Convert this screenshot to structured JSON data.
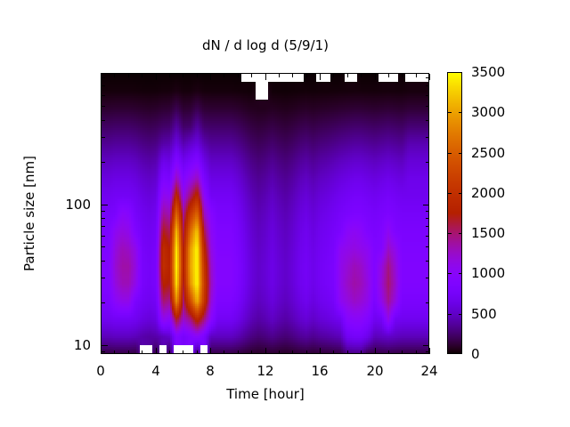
{
  "title": "dN / d log d (5/9/1)",
  "x_axis": {
    "label": "Time [hour]",
    "min": 0,
    "max": 24,
    "major_ticks": [
      0,
      4,
      8,
      12,
      16,
      20,
      24
    ],
    "minor_tick_step_hours": 1
  },
  "y_axis": {
    "label": "Particle size [nm]",
    "scale": "log",
    "min_nm": 8.6,
    "max_nm": 860,
    "major_ticks": [
      10,
      100
    ],
    "minor_ticks": [
      9,
      20,
      30,
      40,
      50,
      60,
      70,
      80,
      90,
      200,
      300,
      400,
      500,
      600,
      700,
      800
    ]
  },
  "colorbar": {
    "min": 0,
    "max": 3500,
    "tick_values": [
      0,
      500,
      1000,
      1500,
      2000,
      2500,
      3000,
      3500
    ],
    "palette_name": "gnuplot pm3d black-violet-magenta-orange-yellow",
    "palette_stops_hex": [
      "#000000",
      "#6001C7",
      "#8806F9",
      "#A7146F",
      "#C13000",
      "#D75D00",
      "#ECA100",
      "#FFFF00"
    ],
    "missing_data_color": "#FFFFFF"
  },
  "chart_data": {
    "type": "heatmap",
    "title": "dN / d log d (5/9/1)",
    "xlabel": "Time [hour]",
    "ylabel": "Particle size [nm]",
    "x_hours": [
      0,
      0.5,
      1,
      1.5,
      2,
      2.5,
      3,
      3.5,
      4,
      4.5,
      5,
      5.5,
      6,
      6.5,
      7,
      7.5,
      8,
      8.5,
      9,
      9.5,
      10,
      10.5,
      11,
      11.5,
      12,
      12.5,
      13,
      13.5,
      14,
      14.5,
      15,
      15.5,
      16,
      16.5,
      17,
      17.5,
      18,
      18.5,
      19,
      19.5,
      20,
      20.5,
      21,
      21.5,
      22,
      22.5,
      23,
      23.5,
      24
    ],
    "y_sizes_nm": [
      8.6,
      11.5,
      15.4,
      20.7,
      27.7,
      37.1,
      49.7,
      66.6,
      89.3,
      119.6,
      160,
      214,
      287,
      385,
      515,
      690,
      860
    ],
    "values_rows_bottom_to_top": [
      [
        142,
        142,
        150,
        150,
        150,
        142,
        null,
        null,
        128,
        null,
        158,
        null,
        null,
        null,
        165,
        null,
        150,
        150,
        150,
        150,
        135,
        112,
        93,
        82,
        90,
        102,
        90,
        82,
        93,
        108,
        117,
        105,
        117,
        123,
        132,
        142,
        280,
        300,
        300,
        150,
        142,
        150,
        158,
        150,
        142,
        142,
        142,
        142,
        142
      ],
      [
        456,
        456,
        480,
        480,
        480,
        456,
        408,
        384,
        408,
        456,
        520,
        900,
        780,
        880,
        1000,
        820,
        480,
        480,
        480,
        480,
        432,
        360,
        298,
        264,
        288,
        326,
        288,
        264,
        298,
        346,
        374,
        336,
        374,
        394,
        422,
        456,
        700,
        750,
        750,
        650,
        456,
        480,
        504,
        480,
        456,
        456,
        456,
        456,
        456
      ],
      [
        684,
        684,
        720,
        720,
        720,
        684,
        612,
        576,
        612,
        1100,
        1000,
        1700,
        1250,
        1450,
        1900,
        1500,
        1000,
        720,
        720,
        720,
        648,
        540,
        446,
        396,
        432,
        490,
        432,
        396,
        446,
        518,
        562,
        504,
        562,
        590,
        634,
        684,
        950,
        1000,
        1000,
        900,
        684,
        720,
        1100,
        720,
        684,
        684,
        684,
        684,
        684
      ],
      [
        808,
        808,
        1000,
        1100,
        1100,
        808,
        722,
        680,
        722,
        1500,
        1400,
        2900,
        1500,
        2300,
        3100,
        2100,
        1200,
        850,
        850,
        850,
        765,
        638,
        527,
        468,
        510,
        578,
        510,
        468,
        527,
        612,
        663,
        595,
        663,
        697,
        748,
        1050,
        1150,
        1250,
        1200,
        1100,
        808,
        1100,
        1400,
        1150,
        808,
        808,
        808,
        808,
        808
      ],
      [
        874,
        874,
        1150,
        1300,
        1300,
        1100,
        782,
        736,
        782,
        1800,
        1700,
        3400,
        1700,
        2900,
        3500,
        2200,
        1300,
        920,
        920,
        920,
        828,
        690,
        570,
        506,
        552,
        626,
        552,
        506,
        570,
        662,
        718,
        644,
        718,
        754,
        810,
        1100,
        1250,
        1350,
        1300,
        1150,
        874,
        1200,
        1500,
        1250,
        874,
        874,
        874,
        874,
        874
      ],
      [
        884,
        884,
        1200,
        1350,
        1350,
        1150,
        790,
        744,
        790,
        2000,
        1800,
        3500,
        1800,
        3000,
        3500,
        2100,
        1250,
        930,
        930,
        930,
        837,
        698,
        577,
        512,
        558,
        632,
        558,
        512,
        577,
        670,
        725,
        651,
        725,
        763,
        818,
        1100,
        1200,
        1300,
        1250,
        1100,
        884,
        1150,
        1450,
        1200,
        884,
        884,
        884,
        884,
        884
      ],
      [
        855,
        855,
        1150,
        1300,
        1250,
        1100,
        765,
        720,
        765,
        1950,
        1750,
        3450,
        1750,
        2950,
        3500,
        1900,
        1150,
        900,
        900,
        900,
        810,
        675,
        558,
        495,
        540,
        612,
        540,
        495,
        558,
        648,
        702,
        630,
        702,
        738,
        792,
        1050,
        1100,
        1150,
        1100,
        1050,
        855,
        900,
        1250,
        1100,
        855,
        855,
        855,
        855,
        855
      ],
      [
        817,
        817,
        1050,
        1150,
        1100,
        860,
        731,
        688,
        731,
        1700,
        1550,
        3200,
        1600,
        2600,
        3250,
        1600,
        1050,
        860,
        860,
        860,
        774,
        645,
        533,
        473,
        516,
        585,
        516,
        473,
        533,
        619,
        671,
        602,
        671,
        705,
        757,
        817,
        1000,
        1050,
        1000,
        860,
        817,
        860,
        1050,
        860,
        817,
        817,
        817,
        817,
        817
      ],
      [
        760,
        760,
        800,
        1000,
        950,
        760,
        680,
        640,
        680,
        1400,
        1300,
        2600,
        1400,
        2100,
        2600,
        1300,
        950,
        800,
        800,
        800,
        720,
        600,
        496,
        440,
        480,
        544,
        480,
        440,
        496,
        576,
        624,
        560,
        624,
        656,
        704,
        760,
        800,
        840,
        840,
        800,
        760,
        800,
        840,
        800,
        760,
        760,
        760,
        760,
        760
      ],
      [
        684,
        684,
        720,
        720,
        720,
        684,
        612,
        576,
        612,
        1100,
        1050,
        1900,
        1100,
        1500,
        1900,
        1050,
        720,
        720,
        720,
        720,
        648,
        540,
        446,
        396,
        432,
        490,
        432,
        396,
        446,
        518,
        562,
        504,
        562,
        590,
        634,
        684,
        720,
        756,
        756,
        720,
        684,
        720,
        756,
        720,
        684,
        684,
        684,
        684,
        684
      ],
      [
        589,
        589,
        620,
        620,
        620,
        589,
        527,
        496,
        527,
        850,
        800,
        1300,
        900,
        1100,
        1300,
        820,
        620,
        620,
        620,
        620,
        558,
        465,
        384,
        341,
        372,
        422,
        372,
        341,
        384,
        446,
        484,
        434,
        484,
        508,
        546,
        589,
        620,
        651,
        651,
        620,
        589,
        620,
        651,
        620,
        589,
        650,
        650,
        650,
        650
      ],
      [
        475,
        475,
        500,
        500,
        500,
        475,
        425,
        400,
        425,
        650,
        620,
        900,
        680,
        780,
        900,
        640,
        500,
        500,
        500,
        500,
        450,
        375,
        310,
        275,
        300,
        340,
        300,
        275,
        310,
        360,
        390,
        350,
        390,
        410,
        440,
        475,
        500,
        525,
        525,
        500,
        475,
        500,
        525,
        500,
        475,
        560,
        560,
        560,
        560
      ],
      [
        342,
        342,
        360,
        360,
        360,
        342,
        306,
        288,
        306,
        400,
        420,
        600,
        430,
        510,
        600,
        430,
        360,
        360,
        360,
        360,
        324,
        270,
        223,
        198,
        216,
        245,
        216,
        198,
        223,
        259,
        281,
        252,
        281,
        295,
        317,
        342,
        360,
        378,
        378,
        360,
        342,
        360,
        378,
        360,
        342,
        430,
        430,
        430,
        430
      ],
      [
        218,
        218,
        230,
        230,
        230,
        218,
        196,
        184,
        196,
        230,
        242,
        380,
        230,
        242,
        380,
        242,
        230,
        230,
        230,
        230,
        207,
        172,
        143,
        126,
        138,
        156,
        138,
        126,
        143,
        166,
        179,
        161,
        179,
        189,
        202,
        218,
        230,
        242,
        242,
        230,
        218,
        230,
        242,
        230,
        218,
        260,
        260,
        260,
        260
      ],
      [
        104,
        104,
        110,
        110,
        110,
        104,
        94,
        88,
        94,
        110,
        116,
        180,
        110,
        116,
        180,
        116,
        110,
        110,
        110,
        110,
        99,
        82,
        68,
        60,
        62,
        75,
        66,
        61,
        68,
        79,
        86,
        77,
        86,
        90,
        97,
        104,
        110,
        116,
        116,
        110,
        104,
        110,
        116,
        110,
        104,
        120,
        120,
        120,
        120
      ],
      [
        24,
        24,
        25,
        25,
        25,
        24,
        21,
        20,
        21,
        25,
        26,
        40,
        25,
        26,
        40,
        26,
        25,
        25,
        25,
        25,
        22,
        19,
        16,
        null,
        null,
        17,
        15,
        14,
        16,
        18,
        20,
        18,
        20,
        21,
        22,
        24,
        25,
        26,
        26,
        25,
        24,
        25,
        26,
        25,
        24,
        30,
        30,
        30,
        30
      ],
      [
        5,
        5,
        5,
        5,
        5,
        5,
        5,
        5,
        5,
        5,
        5,
        5,
        5,
        5,
        5,
        5,
        5,
        5,
        5,
        5,
        5,
        null,
        null,
        null,
        null,
        null,
        null,
        null,
        null,
        null,
        5,
        5,
        null,
        null,
        5,
        5,
        null,
        null,
        5,
        5,
        5,
        null,
        null,
        null,
        5,
        null,
        null,
        null,
        null
      ]
    ]
  }
}
